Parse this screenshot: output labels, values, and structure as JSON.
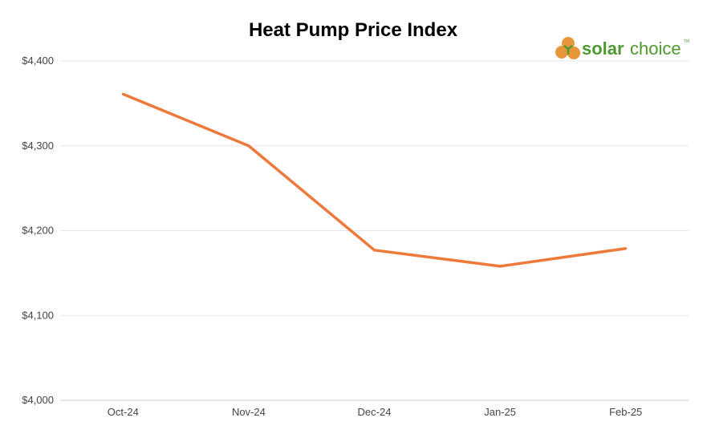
{
  "chart_data": {
    "type": "line",
    "title": "Heat Pump Price Index",
    "xlabel": "",
    "ylabel": "",
    "categories": [
      "Oct-24",
      "Nov-24",
      "Dec-24",
      "Jan-25",
      "Feb-25"
    ],
    "series": [
      {
        "values": [
          4361,
          4300,
          4177,
          4158,
          4179
        ],
        "color": "#ED7A3A"
      }
    ],
    "ylim": [
      4000,
      4400
    ],
    "yticks": [
      4000,
      4100,
      4200,
      4300,
      4400
    ],
    "ytick_labels": [
      "$4,000",
      "$4,100",
      "$4,200",
      "$4,300",
      "$4,400"
    ],
    "grid": "horizontal",
    "legend": "none"
  },
  "logo": {
    "word1": "solar",
    "word2": "choice",
    "tm": "TM",
    "color": "#4E9A2E",
    "sun_color": "#E8963A"
  }
}
